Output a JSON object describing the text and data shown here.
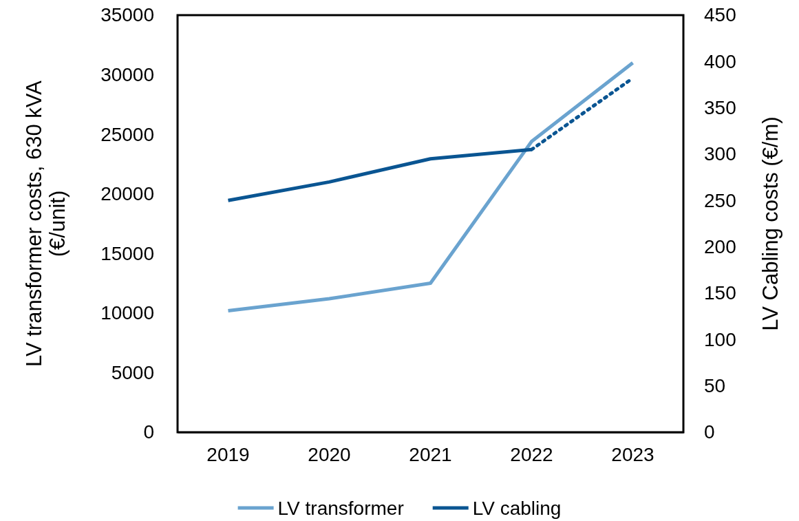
{
  "chart_data": {
    "type": "line",
    "categories": [
      "2019",
      "2020",
      "2021",
      "2022",
      "2023"
    ],
    "ylabel": "LV transformer costs, 630 kVA (€/unit)",
    "y2label": "LV Cabling costs (€/m)",
    "ylim": [
      0,
      35000
    ],
    "yticks": [
      0,
      5000,
      10000,
      15000,
      20000,
      25000,
      30000,
      35000
    ],
    "y2lim": [
      0,
      450
    ],
    "y2ticks": [
      0,
      50,
      100,
      150,
      200,
      250,
      300,
      350,
      400,
      450
    ],
    "series": [
      {
        "name": "LV transformer",
        "color": "#6aa3cf",
        "values": [
          10200,
          11200,
          12500,
          24400,
          31000
        ]
      },
      {
        "name": "LV cabling",
        "color": "#0a5592",
        "axis": "y2",
        "values": [
          250,
          270,
          295,
          305,
          null
        ]
      },
      {
        "color": "#0a5592",
        "axis": "y2",
        "line_style": "dotted",
        "values": [
          null,
          null,
          null,
          305,
          382
        ]
      }
    ],
    "grid": false,
    "legend": "bottom",
    "marker": "none"
  }
}
